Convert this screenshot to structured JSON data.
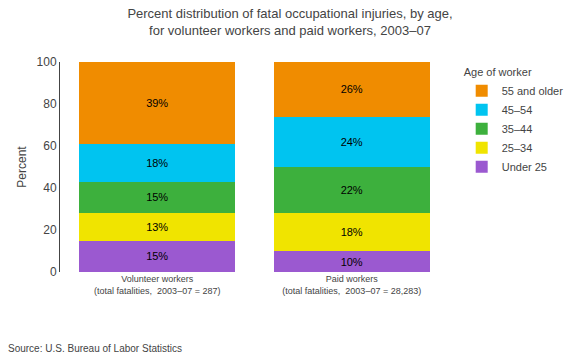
{
  "chart_data": {
    "type": "bar",
    "stacked": true,
    "title": "Percent distribution of fatal occupational injuries, by age,\nfor volunteer workers and paid workers, 2003–07",
    "ylabel": "Percent",
    "categories": [
      "Volunteer workers\n(total fatalities,  2003–07 = 287)",
      "Paid workers\n(total fatalities,  2003–07 = 28,283)"
    ],
    "series": [
      {
        "name": "Under 25",
        "color": "#9b59d0",
        "values": [
          15,
          10
        ],
        "value_labels": [
          "15%",
          "10%"
        ]
      },
      {
        "name": "25–34",
        "color": "#f0e400",
        "values": [
          13,
          18
        ],
        "value_labels": [
          "13%",
          "18%"
        ]
      },
      {
        "name": "35–44",
        "color": "#3db03d",
        "values": [
          15,
          22
        ],
        "value_labels": [
          "15%",
          "22%"
        ]
      },
      {
        "name": "45–54",
        "color": "#00c4f0",
        "values": [
          18,
          24
        ],
        "value_labels": [
          "18%",
          "24%"
        ]
      },
      {
        "name": "55 and older",
        "color": "#f08c00",
        "values": [
          39,
          26
        ],
        "value_labels": [
          "39%",
          "26%"
        ]
      }
    ],
    "ylim": [
      0,
      100
    ],
    "yticks": [
      0,
      20,
      40,
      60,
      80,
      100
    ],
    "legend_title": "Age of worker",
    "legend": "right",
    "data_labels": true,
    "grid": false,
    "source": "Source: U.S. Bureau of Labor Statistics"
  }
}
